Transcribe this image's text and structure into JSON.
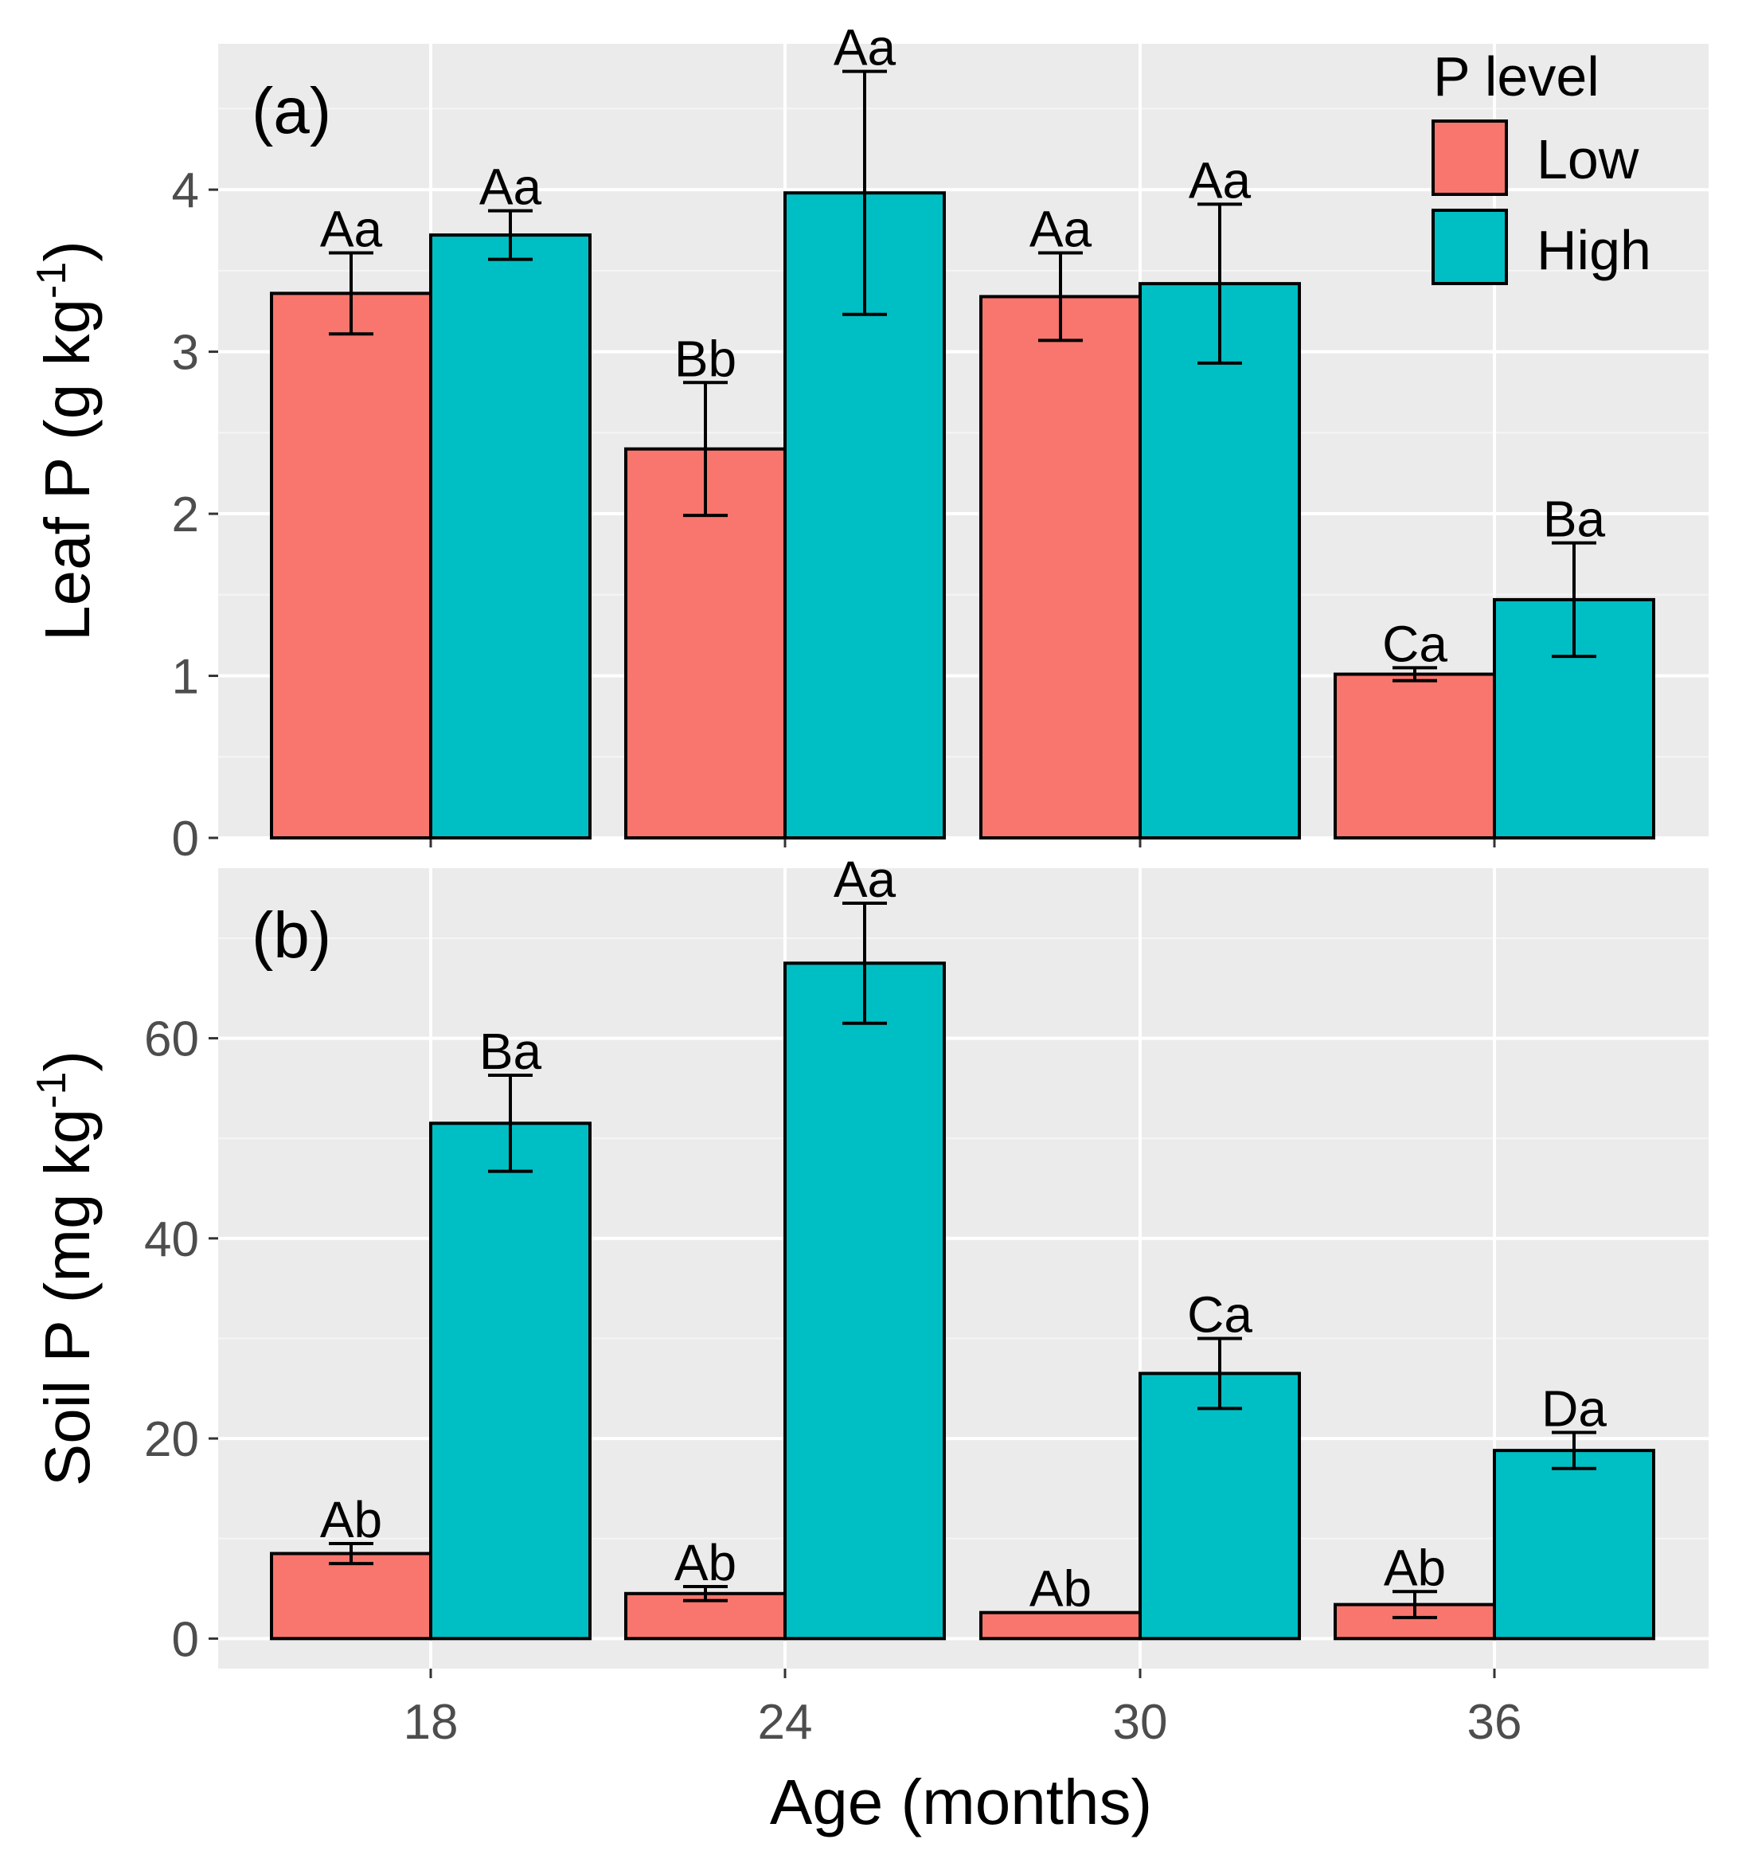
{
  "legend": {
    "title": "P level",
    "items": [
      {
        "label": "Low",
        "color": "#F8766D"
      },
      {
        "label": "High",
        "color": "#00BFC4"
      }
    ]
  },
  "x_axis": {
    "title": "Age (months)",
    "ticks": [
      "18",
      "24",
      "30",
      "36"
    ]
  },
  "chart_data": [
    {
      "type": "bar",
      "panel_label": "(a)",
      "ylabel": "Leaf P (g kg-1)",
      "ylabel_base": "Leaf P (g kg",
      "ylabel_sup": "-1",
      "ylabel_close": ")",
      "ylim": [
        0,
        4.9
      ],
      "yticks": [
        "0",
        "1",
        "2",
        "3",
        "4"
      ],
      "yticks_values": [
        0,
        1,
        2,
        3,
        4
      ],
      "categories": [
        "18",
        "24",
        "30",
        "36"
      ],
      "grid": true,
      "legend_position": "top-right",
      "series": [
        {
          "name": "Low",
          "color": "#F8766D",
          "values": [
            3.36,
            2.4,
            3.34,
            1.01
          ],
          "errors": [
            0.25,
            0.41,
            0.27,
            0.04
          ],
          "labels": [
            "Aa",
            "Bb",
            "Aa",
            "Ca"
          ]
        },
        {
          "name": "High",
          "color": "#00BFC4",
          "values": [
            3.72,
            3.98,
            3.42,
            1.47
          ],
          "errors": [
            0.15,
            0.75,
            0.49,
            0.35
          ],
          "labels": [
            "Aa",
            "Aa",
            "Aa",
            "Ba"
          ]
        }
      ]
    },
    {
      "type": "bar",
      "panel_label": "(b)",
      "ylabel": "Soil P (mg kg-1)",
      "ylabel_base": "Soil P (mg kg",
      "ylabel_sup": "-1",
      "ylabel_close": ")",
      "ylim": [
        -3,
        77
      ],
      "yticks": [
        "0",
        "20",
        "40",
        "60"
      ],
      "yticks_values": [
        0,
        20,
        40,
        60
      ],
      "categories": [
        "18",
        "24",
        "30",
        "36"
      ],
      "grid": true,
      "series": [
        {
          "name": "Low",
          "color": "#F8766D",
          "values": [
            8.5,
            4.5,
            2.6,
            3.4
          ],
          "errors": [
            1.0,
            0.7,
            0.0,
            1.3
          ],
          "labels": [
            "Ab",
            "Ab",
            "Ab",
            "Ab"
          ]
        },
        {
          "name": "High",
          "color": "#00BFC4",
          "values": [
            51.5,
            67.5,
            26.5,
            18.8
          ],
          "errors": [
            4.8,
            6.0,
            3.5,
            1.8
          ],
          "labels": [
            "Ba",
            "Aa",
            "Ca",
            "Da"
          ]
        }
      ]
    }
  ]
}
